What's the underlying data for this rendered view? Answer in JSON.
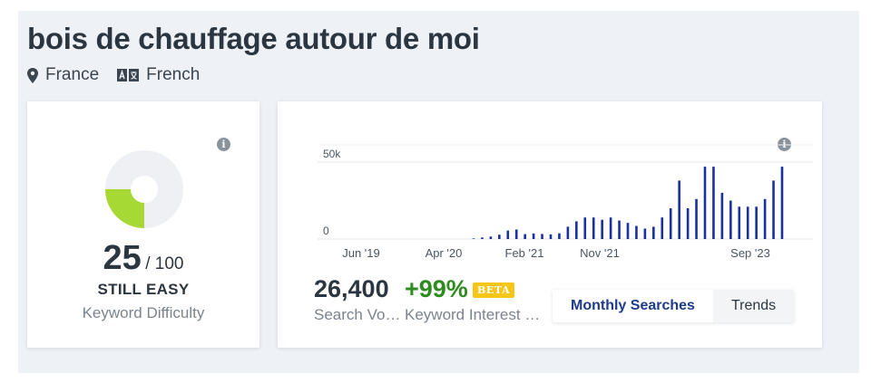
{
  "keyword": "bois de chauffage autour de moi",
  "location": {
    "icon": "map-pin-icon",
    "label": "France"
  },
  "language": {
    "icon": "translate-icon",
    "label": "French"
  },
  "difficulty": {
    "score": "25",
    "max": "/ 100",
    "score_fraction": 0.25,
    "rating": "STILL EASY",
    "label": "Keyword Difficulty",
    "info_icon": "info-icon"
  },
  "volume": {
    "value": "26,400",
    "label": "Search Vo…",
    "trend": "+99%",
    "trend_label": "Keyword Interest …",
    "beta": "BETA",
    "info_icon": "info-icon"
  },
  "view_toggle": {
    "options": [
      "Monthly Searches",
      "Trends"
    ],
    "selected": "Monthly Searches"
  },
  "colors": {
    "accent": "#1e3a8a",
    "bar": "#1a2fa0",
    "easy": "#a6d934",
    "positive": "#2e8b1f",
    "beta": "#f5c518"
  },
  "chart_data": {
    "type": "bar",
    "y_ticks": [
      "50k",
      "0"
    ],
    "ylim": [
      0,
      60000
    ],
    "x_ticks": [
      "Jun '19",
      "Apr '20",
      "Feb '21",
      "Nov '21",
      "Sep '23"
    ],
    "values": [
      400,
      1000,
      1600,
      2800,
      5500,
      6200,
      3200,
      3600,
      3300,
      3000,
      3700,
      8000,
      11500,
      14000,
      14000,
      12500,
      14000,
      12000,
      10500,
      8500,
      6800,
      8000,
      14000,
      20000,
      38000,
      20000,
      26000,
      47000,
      47000,
      30000,
      25000,
      21000,
      21000,
      21000,
      26000,
      38000,
      47000
    ],
    "grid": true
  }
}
